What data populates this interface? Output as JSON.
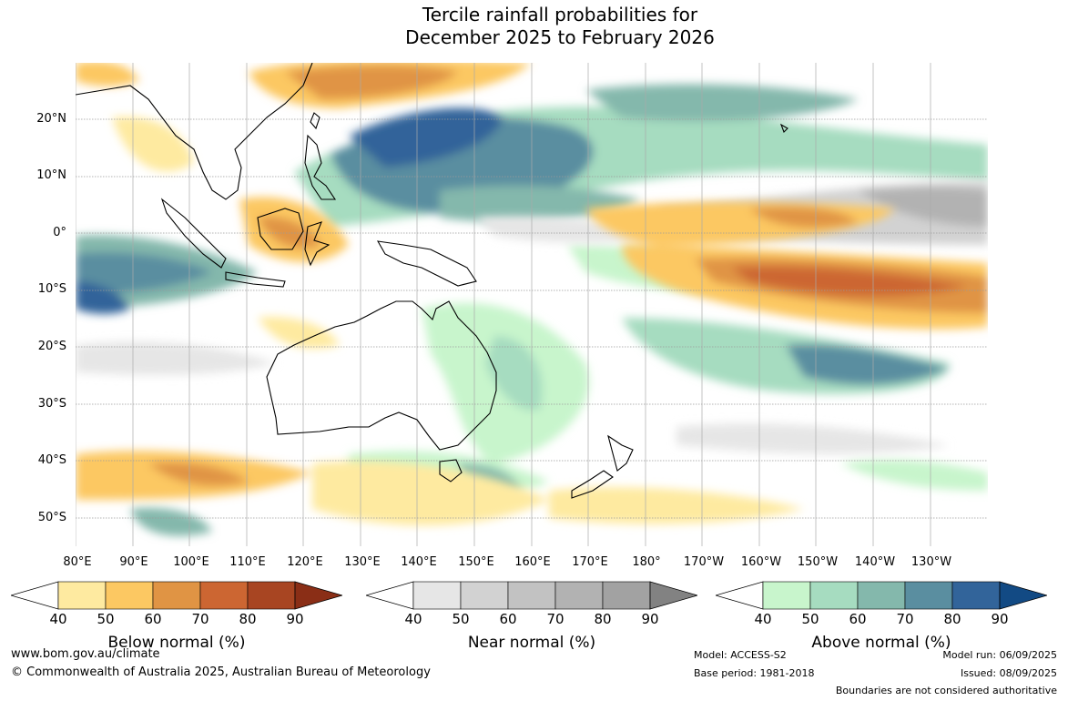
{
  "title": {
    "line1": "Tercile rainfall probabilities for",
    "line2": "December 2025 to February 2026"
  },
  "map": {
    "lat_labels": [
      "20°N",
      "10°N",
      "0°",
      "10°S",
      "20°S",
      "30°S",
      "40°S",
      "50°S"
    ],
    "lon_labels": [
      "80°E",
      "90°E",
      "100°E",
      "110°E",
      "120°E",
      "130°E",
      "140°E",
      "150°E",
      "160°E",
      "170°E",
      "180°",
      "170°W",
      "160°W",
      "150°W",
      "140°W",
      "130°W"
    ],
    "lat_range": [
      -55,
      30
    ],
    "lon_range": [
      80,
      240
    ]
  },
  "colorbars": [
    {
      "name": "Below normal (%)",
      "ticks": [
        "40",
        "50",
        "60",
        "70",
        "80",
        "90"
      ],
      "colors": [
        "#ffffff",
        "#feeaa0",
        "#fcc862",
        "#e09444",
        "#cc6632",
        "#a84522",
        "#8a2e16"
      ]
    },
    {
      "name": "Near normal (%)",
      "ticks": [
        "40",
        "50",
        "60",
        "70",
        "80",
        "90"
      ],
      "colors": [
        "#ffffff",
        "#e6e6e6",
        "#d2d2d2",
        "#c2c2c2",
        "#b2b2b2",
        "#a2a2a2",
        "#828282"
      ]
    },
    {
      "name": "Above normal (%)",
      "ticks": [
        "40",
        "50",
        "60",
        "70",
        "80",
        "90"
      ],
      "colors": [
        "#ffffff",
        "#c8f5cc",
        "#a6dcc0",
        "#84b8ac",
        "#5a8ea0",
        "#32649a",
        "#124a84"
      ]
    }
  ],
  "footer": {
    "url": "www.bom.gov.au/climate",
    "copyright": "© Commonwealth of Australia 2025, Australian Bureau of Meteorology",
    "model": "Model: ACCESS-S2",
    "base_period": "Base period: 1981-2018",
    "model_run": "Model run: 06/09/2025",
    "issued": "Issued: 08/09/2025",
    "disclaimer": "Boundaries are not considered authoritative"
  }
}
